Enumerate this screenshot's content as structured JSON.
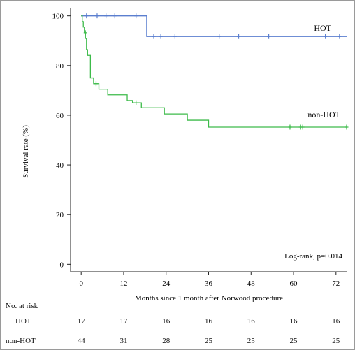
{
  "chart_data": {
    "type": "line",
    "xlabel": "Months since 1 month after Norwood procedure",
    "ylabel": "Survival rate (%)",
    "xlim": [
      -3,
      75
    ],
    "ylim": [
      -3,
      103
    ],
    "xticks": [
      0,
      12,
      24,
      36,
      48,
      60,
      72
    ],
    "yticks": [
      0,
      20,
      40,
      60,
      80,
      100
    ],
    "annotation": "Log-rank, p=0.014",
    "series": [
      {
        "name": "HOT",
        "color": "#5b7fcf",
        "steps": [
          [
            0,
            100
          ],
          [
            18.5,
            100
          ],
          [
            18.5,
            91.7
          ],
          [
            75,
            91.7
          ]
        ],
        "censored": [
          [
            1.5,
            100
          ],
          [
            4.5,
            100
          ],
          [
            7,
            100
          ],
          [
            9.5,
            100
          ],
          [
            15.5,
            100
          ],
          [
            20.5,
            91.7
          ],
          [
            22.5,
            91.7
          ],
          [
            26.5,
            91.7
          ],
          [
            39,
            91.7
          ],
          [
            44.5,
            91.7
          ],
          [
            53,
            91.7
          ],
          [
            69,
            91.7
          ],
          [
            73,
            91.7
          ]
        ]
      },
      {
        "name": "non-HOT",
        "color": "#3dbb4a",
        "steps": [
          [
            0,
            100
          ],
          [
            0.3,
            97.7
          ],
          [
            0.6,
            95.5
          ],
          [
            0.9,
            93.2
          ],
          [
            1.2,
            90.9
          ],
          [
            1.5,
            86.4
          ],
          [
            1.8,
            84.1
          ],
          [
            2.6,
            75
          ],
          [
            3.5,
            75
          ],
          [
            3.5,
            72.7
          ],
          [
            5,
            72.7
          ],
          [
            5,
            70.5
          ],
          [
            7.5,
            70.5
          ],
          [
            7.5,
            68.2
          ],
          [
            13,
            68.2
          ],
          [
            13,
            65.9
          ],
          [
            14.5,
            65.9
          ],
          [
            14.5,
            65
          ],
          [
            17,
            65
          ],
          [
            17,
            63
          ],
          [
            23.5,
            63
          ],
          [
            23.5,
            60.5
          ],
          [
            30,
            60.5
          ],
          [
            30,
            58
          ],
          [
            36,
            58
          ],
          [
            36,
            55.2
          ],
          [
            75,
            55.2
          ]
        ],
        "censored": [
          [
            1.2,
            93.2
          ],
          [
            4.2,
            72.7
          ],
          [
            15.5,
            65
          ],
          [
            59,
            55.2
          ],
          [
            62,
            55.2
          ],
          [
            62.6,
            55.2
          ],
          [
            75,
            55.2
          ]
        ]
      }
    ],
    "risk_table": {
      "title": "No. at risk",
      "rows": [
        {
          "label": "HOT",
          "values": [
            "17",
            "17",
            "16",
            "16",
            "16",
            "16",
            "16"
          ]
        },
        {
          "label": "non-HOT",
          "values": [
            "44",
            "31",
            "28",
            "25",
            "25",
            "25",
            "25"
          ]
        }
      ]
    }
  }
}
